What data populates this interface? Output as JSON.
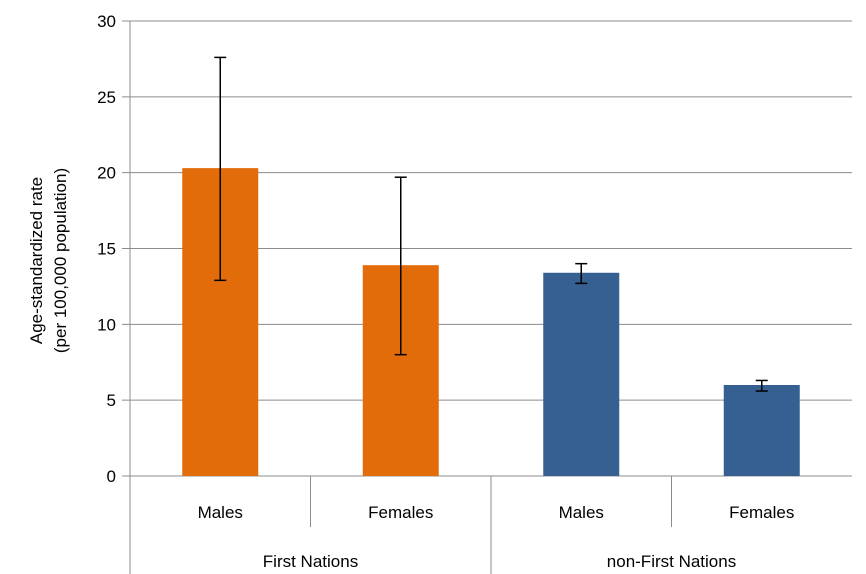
{
  "chart_data": {
    "type": "bar",
    "title": "",
    "ylabel_lines": [
      "Age-standardized rate",
      "(per 100,000 population)"
    ],
    "ylim": [
      0,
      30
    ],
    "yticks": [
      0,
      5,
      10,
      15,
      20,
      25,
      30
    ],
    "grid": true,
    "groups": [
      {
        "label": "First Nations",
        "categories": [
          "Males",
          "Females"
        ]
      },
      {
        "label": "non-First Nations",
        "categories": [
          "Males",
          "Females"
        ]
      }
    ],
    "bars": [
      {
        "group": "First Nations",
        "category": "Males",
        "value": 20.3,
        "error_low": 12.9,
        "error_high": 27.6,
        "color": "#E36C0A"
      },
      {
        "group": "First Nations",
        "category": "Females",
        "value": 13.9,
        "error_low": 8.0,
        "error_high": 19.7,
        "color": "#E36C0A"
      },
      {
        "group": "non-First Nations",
        "category": "Males",
        "value": 13.4,
        "error_low": 12.7,
        "error_high": 14.0,
        "color": "#366092"
      },
      {
        "group": "non-First Nations",
        "category": "Females",
        "value": 6.0,
        "error_low": 5.6,
        "error_high": 6.3,
        "color": "#366092"
      }
    ]
  }
}
